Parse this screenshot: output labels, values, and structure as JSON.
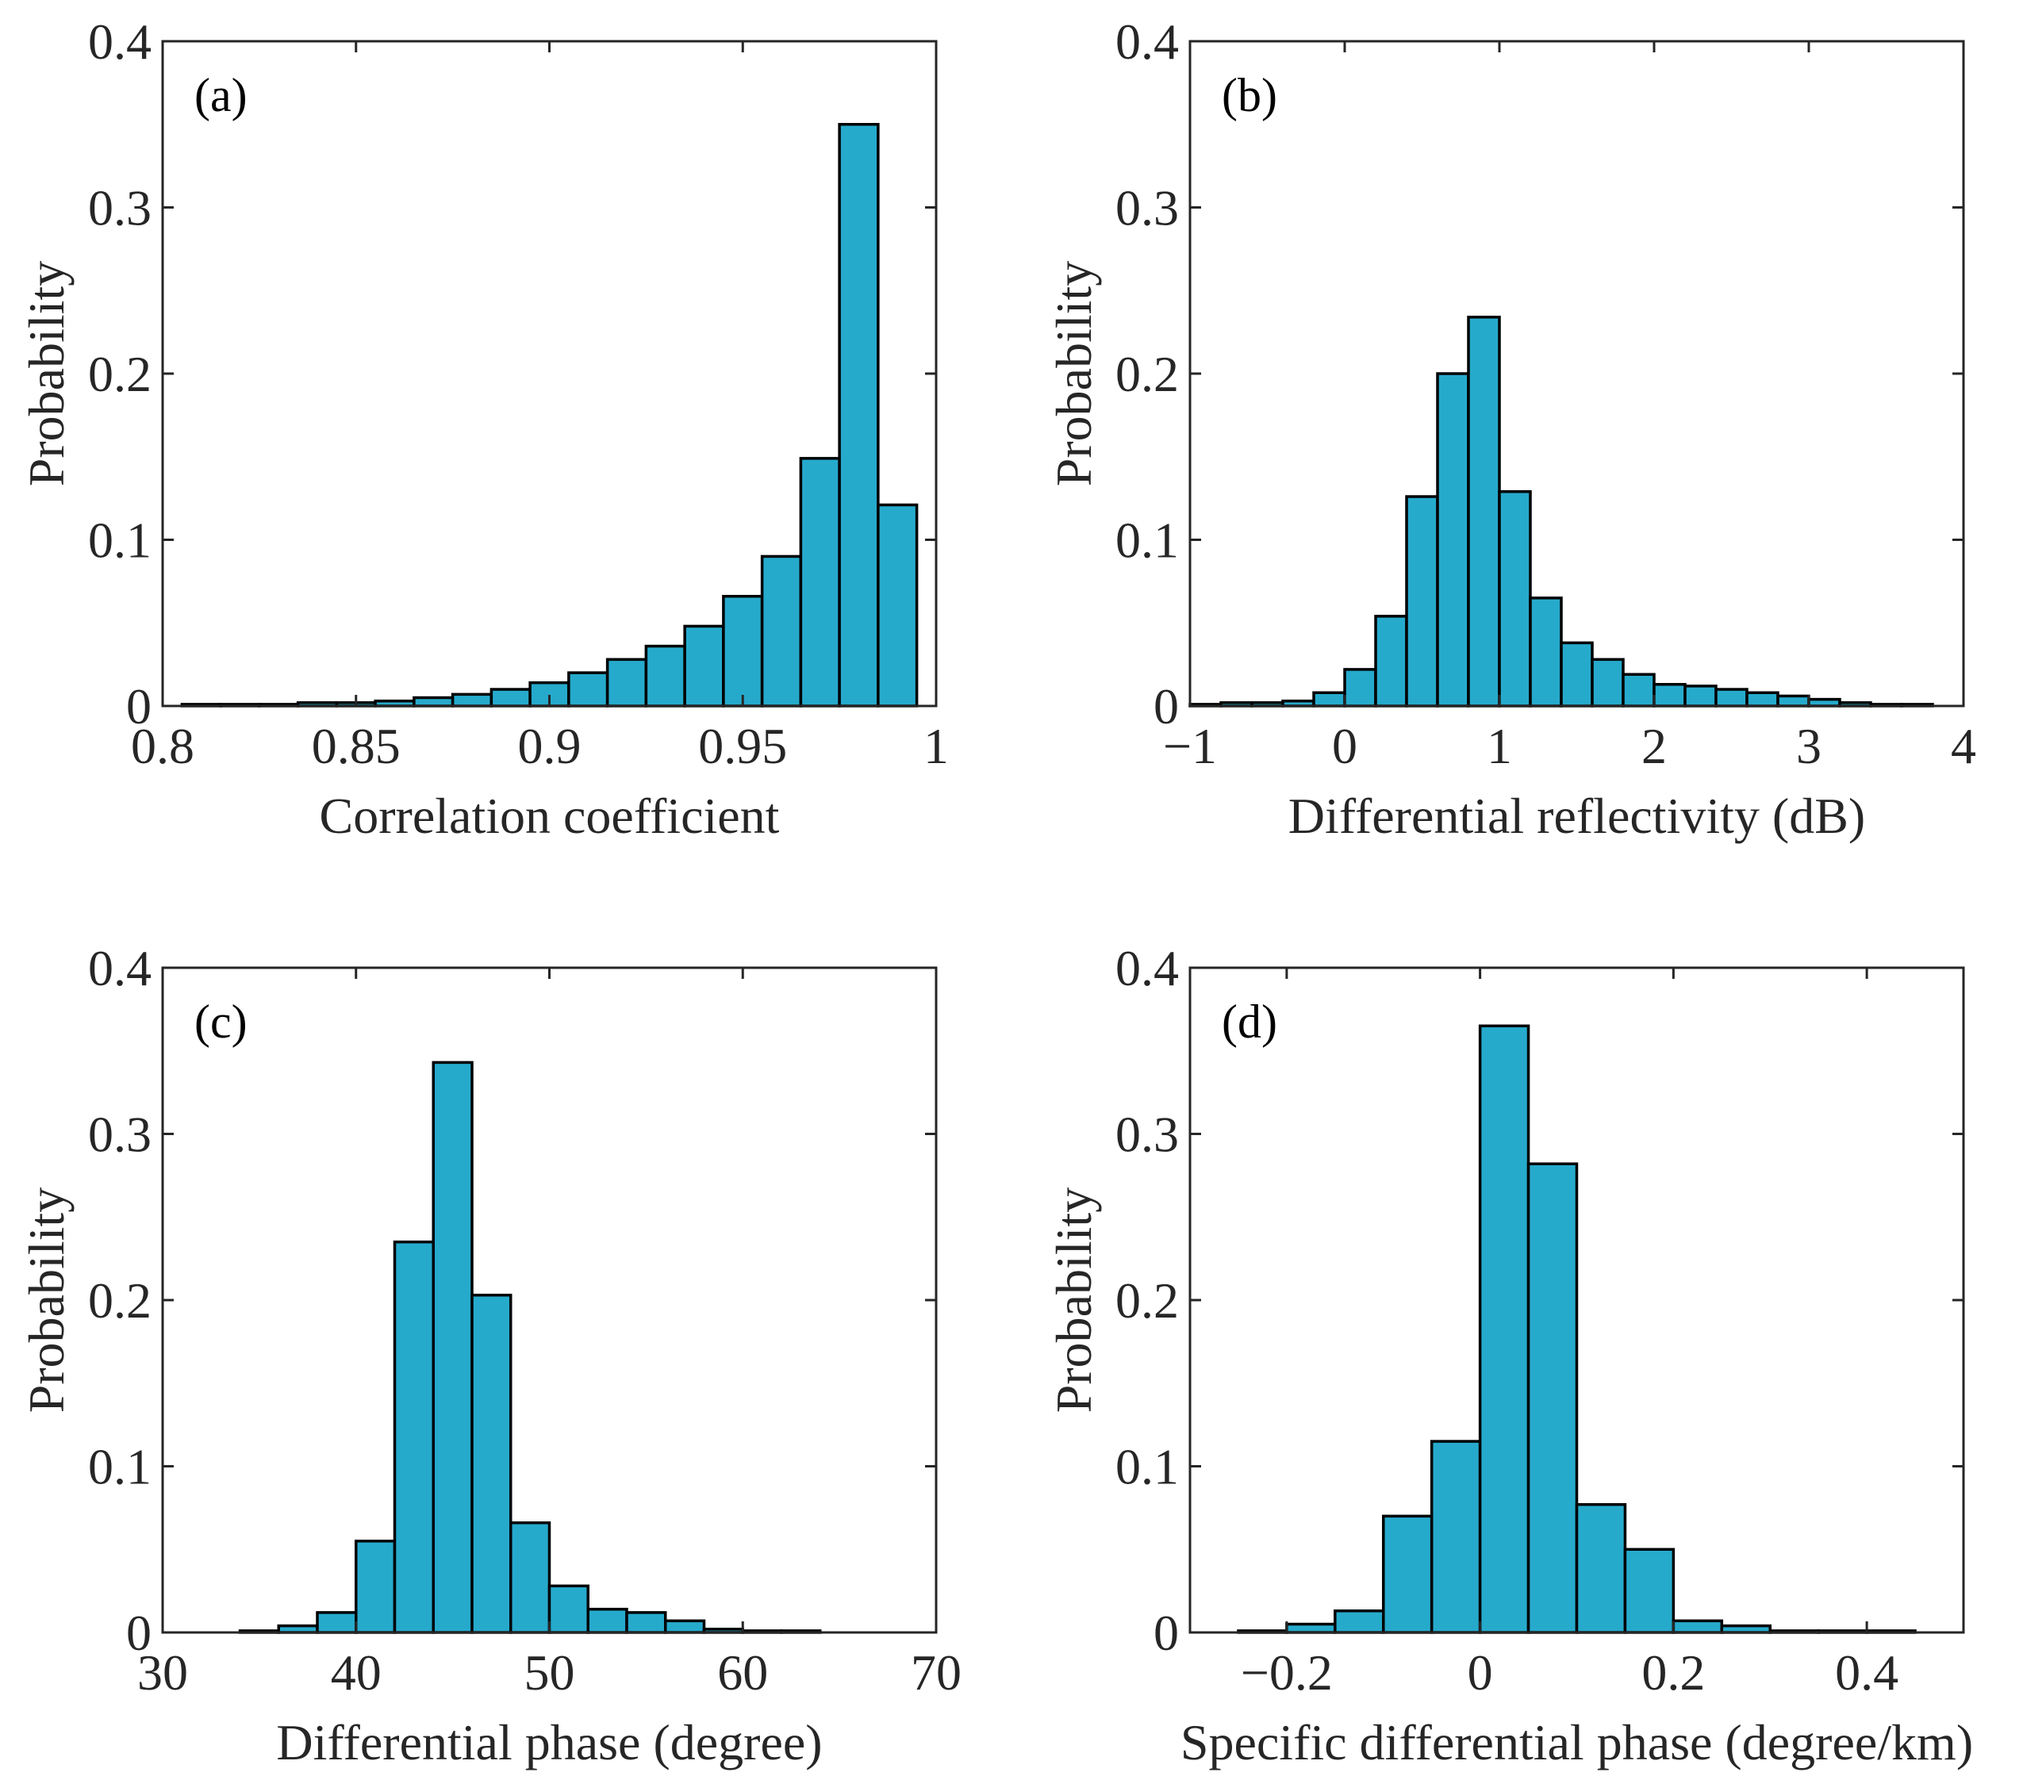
{
  "figure": {
    "bar_color": "#26aacc",
    "edge_color": "#000000",
    "axis_color": "#262626"
  },
  "chart_data": [
    {
      "type": "bar",
      "panel": "(a)",
      "xlabel": "Correlation coefficient",
      "ylabel": "Probability",
      "xlim": [
        0.8,
        1.0
      ],
      "ylim": [
        0,
        0.4
      ],
      "xticks": [
        0.8,
        0.85,
        0.9,
        0.95,
        1.0
      ],
      "xtick_labels": [
        "0.8",
        "0.85",
        "0.9",
        "0.95",
        "1"
      ],
      "yticks": [
        0,
        0.1,
        0.2,
        0.3,
        0.4
      ],
      "ytick_labels": [
        "0",
        "0.1",
        "0.2",
        "0.3",
        "0.4"
      ],
      "bin_edges": [
        0.805,
        0.81,
        0.815,
        0.82,
        0.825,
        0.83,
        0.835,
        0.84,
        0.845,
        0.85,
        0.855,
        0.86,
        0.865,
        0.87,
        0.875,
        0.88,
        0.885,
        0.89,
        0.895,
        0.9,
        0.905,
        0.91,
        0.915,
        0.92,
        0.925,
        0.93,
        0.935,
        0.94,
        0.945,
        0.95,
        0.955,
        0.96,
        0.965,
        0.97,
        0.975,
        0.98,
        0.985,
        0.99,
        0.995,
        1.0
      ],
      "merged_note": "bins below use width 0.01 approx per visible bar",
      "bins": [
        {
          "x0": 0.805,
          "x1": 0.815,
          "p": 0.001
        },
        {
          "x0": 0.815,
          "x1": 0.825,
          "p": 0.001
        },
        {
          "x0": 0.825,
          "x1": 0.835,
          "p": 0.001
        },
        {
          "x0": 0.835,
          "x1": 0.845,
          "p": 0.002
        },
        {
          "x0": 0.845,
          "x1": 0.855,
          "p": 0.002
        },
        {
          "x0": 0.855,
          "x1": 0.865,
          "p": 0.003
        },
        {
          "x0": 0.865,
          "x1": 0.875,
          "p": 0.005
        },
        {
          "x0": 0.875,
          "x1": 0.885,
          "p": 0.007
        },
        {
          "x0": 0.885,
          "x1": 0.895,
          "p": 0.01
        },
        {
          "x0": 0.895,
          "x1": 0.905,
          "p": 0.014
        },
        {
          "x0": 0.905,
          "x1": 0.915,
          "p": 0.02
        },
        {
          "x0": 0.915,
          "x1": 0.925,
          "p": 0.028
        },
        {
          "x0": 0.925,
          "x1": 0.935,
          "p": 0.036
        },
        {
          "x0": 0.935,
          "x1": 0.945,
          "p": 0.048
        },
        {
          "x0": 0.945,
          "x1": 0.955,
          "p": 0.066
        },
        {
          "x0": 0.955,
          "x1": 0.965,
          "p": 0.09
        },
        {
          "x0": 0.965,
          "x1": 0.975,
          "p": 0.149
        },
        {
          "x0": 0.975,
          "x1": 0.985,
          "p": 0.35
        },
        {
          "x0": 0.985,
          "x1": 0.995,
          "p": 0.121
        }
      ]
    },
    {
      "type": "bar",
      "panel": "(b)",
      "xlabel": "Differential reflectivity (dB)",
      "ylabel": "Probability",
      "xlim": [
        -1,
        4
      ],
      "ylim": [
        0,
        0.4
      ],
      "xticks": [
        -1,
        0,
        1,
        2,
        3,
        4
      ],
      "xtick_labels": [
        "−1",
        "0",
        "1",
        "2",
        "3",
        "4"
      ],
      "yticks": [
        0,
        0.1,
        0.2,
        0.3,
        0.4
      ],
      "ytick_labels": [
        "0",
        "0.1",
        "0.2",
        "0.3",
        "0.4"
      ],
      "bins": [
        {
          "x0": -1.0,
          "x1": -0.8,
          "p": 0.001
        },
        {
          "x0": -0.8,
          "x1": -0.6,
          "p": 0.002
        },
        {
          "x0": -0.6,
          "x1": -0.4,
          "p": 0.002
        },
        {
          "x0": -0.4,
          "x1": -0.2,
          "p": 0.003
        },
        {
          "x0": -0.2,
          "x1": 0.0,
          "p": 0.008
        },
        {
          "x0": 0.0,
          "x1": 0.2,
          "p": 0.022
        },
        {
          "x0": 0.2,
          "x1": 0.4,
          "p": 0.054
        },
        {
          "x0": 0.4,
          "x1": 0.6,
          "p": 0.126
        },
        {
          "x0": 0.6,
          "x1": 0.8,
          "p": 0.2
        },
        {
          "x0": 0.8,
          "x1": 1.0,
          "p": 0.234
        },
        {
          "x0": 1.0,
          "x1": 1.2,
          "p": 0.129
        },
        {
          "x0": 1.2,
          "x1": 1.4,
          "p": 0.065
        },
        {
          "x0": 1.4,
          "x1": 1.6,
          "p": 0.038
        },
        {
          "x0": 1.6,
          "x1": 1.8,
          "p": 0.028
        },
        {
          "x0": 1.8,
          "x1": 2.0,
          "p": 0.019
        },
        {
          "x0": 2.0,
          "x1": 2.2,
          "p": 0.013
        },
        {
          "x0": 2.2,
          "x1": 2.4,
          "p": 0.012
        },
        {
          "x0": 2.4,
          "x1": 2.6,
          "p": 0.01
        },
        {
          "x0": 2.6,
          "x1": 2.8,
          "p": 0.008
        },
        {
          "x0": 2.8,
          "x1": 3.0,
          "p": 0.006
        },
        {
          "x0": 3.0,
          "x1": 3.2,
          "p": 0.004
        },
        {
          "x0": 3.2,
          "x1": 3.4,
          "p": 0.002
        },
        {
          "x0": 3.4,
          "x1": 3.6,
          "p": 0.001
        },
        {
          "x0": 3.6,
          "x1": 3.8,
          "p": 0.001
        }
      ]
    },
    {
      "type": "bar",
      "panel": "(c)",
      "xlabel": "Differential phase (degree)",
      "ylabel": "Probability",
      "xlim": [
        30,
        70
      ],
      "ylim": [
        0,
        0.4
      ],
      "xticks": [
        30,
        40,
        50,
        60,
        70
      ],
      "xtick_labels": [
        "30",
        "40",
        "50",
        "60",
        "70"
      ],
      "yticks": [
        0,
        0.1,
        0.2,
        0.3,
        0.4
      ],
      "ytick_labels": [
        "0",
        "0.1",
        "0.2",
        "0.3",
        "0.4"
      ],
      "bins": [
        {
          "x0": 34,
          "x1": 36,
          "p": 0.001
        },
        {
          "x0": 36,
          "x1": 38,
          "p": 0.004
        },
        {
          "x0": 38,
          "x1": 40,
          "p": 0.012
        },
        {
          "x0": 40,
          "x1": 42,
          "p": 0.055
        },
        {
          "x0": 42,
          "x1": 44,
          "p": 0.235
        },
        {
          "x0": 44,
          "x1": 46,
          "p": 0.343
        },
        {
          "x0": 46,
          "x1": 48,
          "p": 0.203
        },
        {
          "x0": 48,
          "x1": 50,
          "p": 0.066
        },
        {
          "x0": 50,
          "x1": 52,
          "p": 0.028
        },
        {
          "x0": 52,
          "x1": 54,
          "p": 0.014
        },
        {
          "x0": 54,
          "x1": 56,
          "p": 0.012
        },
        {
          "x0": 56,
          "x1": 58,
          "p": 0.007
        },
        {
          "x0": 58,
          "x1": 60,
          "p": 0.002
        },
        {
          "x0": 60,
          "x1": 62,
          "p": 0.001
        },
        {
          "x0": 62,
          "x1": 64,
          "p": 0.001
        }
      ]
    },
    {
      "type": "bar",
      "panel": "(d)",
      "xlabel": "Specific differential phase (degree/km)",
      "ylabel": "Probability",
      "xlim": [
        -0.3,
        0.5
      ],
      "ylim": [
        0,
        0.4
      ],
      "xticks": [
        -0.2,
        0,
        0.2,
        0.4
      ],
      "xtick_labels": [
        "−0.2",
        "0",
        "0.2",
        "0.4"
      ],
      "yticks": [
        0,
        0.1,
        0.2,
        0.3,
        0.4
      ],
      "ytick_labels": [
        "0",
        "0.1",
        "0.2",
        "0.3",
        "0.4"
      ],
      "bins": [
        {
          "x0": -0.25,
          "x1": -0.2,
          "p": 0.001
        },
        {
          "x0": -0.2,
          "x1": -0.15,
          "p": 0.005
        },
        {
          "x0": -0.15,
          "x1": -0.1,
          "p": 0.013
        },
        {
          "x0": -0.1,
          "x1": -0.05,
          "p": 0.07
        },
        {
          "x0": -0.05,
          "x1": 0.0,
          "p": 0.115
        },
        {
          "x0": 0.0,
          "x1": 0.05,
          "p": 0.365
        },
        {
          "x0": 0.05,
          "x1": 0.1,
          "p": 0.282
        },
        {
          "x0": 0.1,
          "x1": 0.15,
          "p": 0.077
        },
        {
          "x0": 0.15,
          "x1": 0.2,
          "p": 0.05
        },
        {
          "x0": 0.2,
          "x1": 0.25,
          "p": 0.007
        },
        {
          "x0": 0.25,
          "x1": 0.3,
          "p": 0.004
        },
        {
          "x0": 0.3,
          "x1": 0.35,
          "p": 0.001
        },
        {
          "x0": 0.35,
          "x1": 0.4,
          "p": 0.001
        },
        {
          "x0": 0.4,
          "x1": 0.45,
          "p": 0.001
        }
      ]
    }
  ]
}
